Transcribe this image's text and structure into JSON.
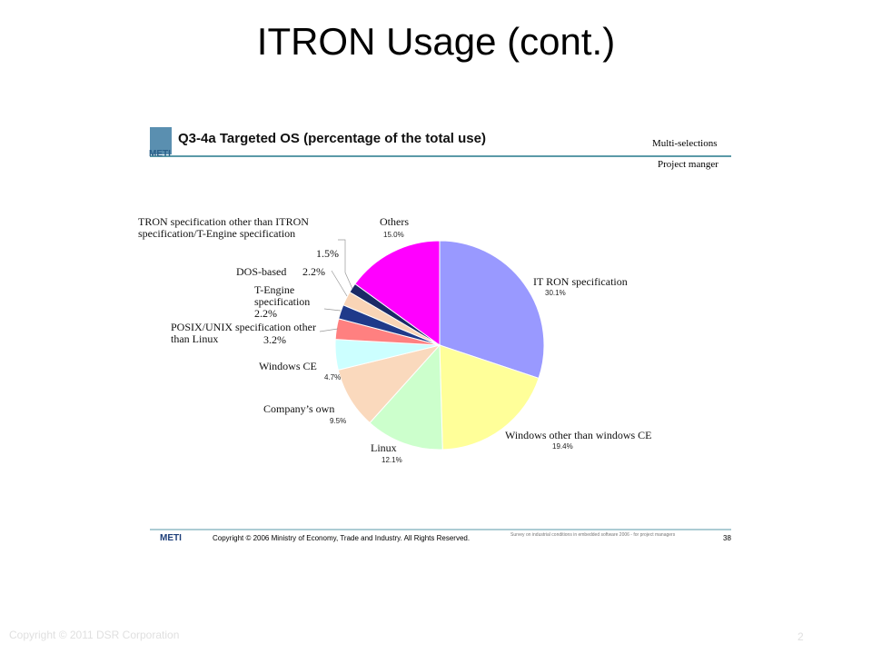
{
  "slide": {
    "title": "ITRON Usage (cont.)",
    "footer": "Copyright © 2011 DSR Corporation",
    "page_number": "2"
  },
  "figure": {
    "logo": "METI",
    "heading": "Q3-4a Targeted OS (percentage of the total use)",
    "tag_1": "Multi-selections",
    "tag_2": "Project manger",
    "footer_logo": "METI",
    "footer_copyright": "Copyright © 2006 Ministry of Economy, Trade and Industry. All Rights Reserved.",
    "footer_note": "Survey on industrial conditions in embedded software 2006 - for project managers",
    "footer_page": "38"
  },
  "chart_data": {
    "type": "pie",
    "categories": [
      "IT RON specification",
      "Windows other than windows CE",
      "Linux",
      "Company’s own",
      "Windows CE",
      "POSIX/UNIX specification other than Linux",
      "T-Engine specification",
      "DOS-based",
      "TRON specification other than ITRON specification/T-Engine specification",
      "Others"
    ],
    "values": [
      30.1,
      19.4,
      12.1,
      9.5,
      4.7,
      3.2,
      2.2,
      2.2,
      1.5,
      15.0
    ],
    "value_labels": [
      "30.1%",
      "19.4%",
      "12.1%",
      "9.5%",
      "4.7%",
      "3.2%",
      "2.2%",
      "2.2%",
      "1.5%",
      "15.0%"
    ],
    "colors": [
      "#9999ff",
      "#ffff99",
      "#ccffcc",
      "#fad9bd",
      "#ccffff",
      "#ff8080",
      "#1f3a8a",
      "#f9d4b6",
      "#1b2a66",
      "#ff00ff"
    ]
  }
}
